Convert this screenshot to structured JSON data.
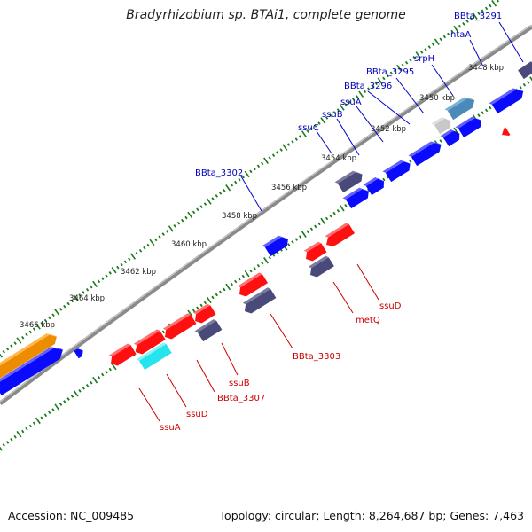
{
  "title": "Bradyrhizobium sp. BTAi1, complete genome",
  "footer": {
    "accession_label": "Accession:",
    "accession": "NC_009485",
    "topology_label": "Topology:",
    "topology": "circular",
    "length_label": "Length:",
    "length": "8,264,687 bp",
    "genes_label": "Genes:",
    "genes": "7,463"
  },
  "colors": {
    "forward_gene": "#0a0aff",
    "forward_gene_dark": "#4a4a7a",
    "reverse_gene": "#ff1010",
    "reverse_gene_dark": "#4a4a7a",
    "rna": "#ff9a10",
    "cyan_gene": "#25e4ee",
    "steel_gene": "#4a8ab8",
    "grey_gene": "#c8c8c8",
    "forward_label": "#0000bb",
    "reverse_label": "#cc0000",
    "tick": "#1b7a1b",
    "backbone": "#888888"
  },
  "kbp_ticks": [
    "3448 kbp",
    "3450 kbp",
    "3452 kbp",
    "3454 kbp",
    "3456 kbp",
    "3458 kbp",
    "3460 kbp",
    "3462 kbp",
    "3464 kbp",
    "3466 kbp"
  ],
  "forward_labels": [
    "BBta_3291",
    "ntaA",
    "srpH",
    "BBta_3295",
    "BBta_3296",
    "ssuA",
    "ssuB",
    "ssuC",
    "BBta_3302"
  ],
  "reverse_labels": [
    "ssuD",
    "metQ",
    "BBta_3303",
    "ssuB",
    "BBta_3307",
    "ssuD",
    "ssuA"
  ]
}
